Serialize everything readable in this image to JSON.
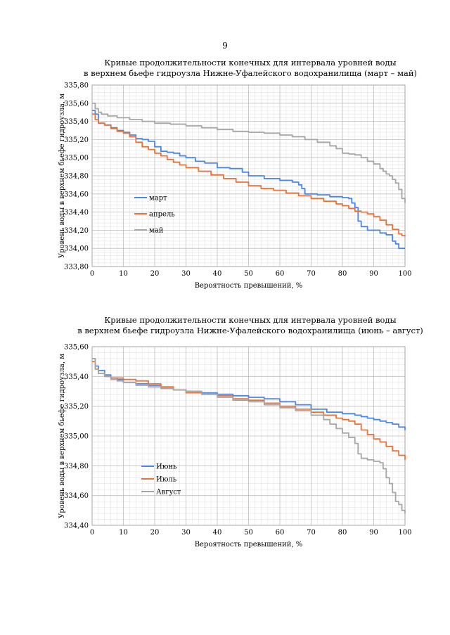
{
  "page": {
    "number": "9"
  },
  "chart_data": [
    {
      "type": "line",
      "title": [
        "Кривые продолжительности конечных для интервала уровней воды",
        "в верхнем бьефе гидроузла Нижне-Уфалейского водохранилища (март – май)"
      ],
      "xlabel": "Вероятность превышений, %",
      "ylabel": "Уровень воды  в верхнем бьефе гидроузла, м",
      "xlim": [
        0,
        100
      ],
      "ylim": [
        333.8,
        335.8
      ],
      "x_ticks": [
        "0",
        "10",
        "20",
        "30",
        "40",
        "50",
        "60",
        "70",
        "80",
        "90",
        "100"
      ],
      "y_ticks": [
        "333,80",
        "334,00",
        "334,20",
        "334,40",
        "334,60",
        "334,80",
        "335,00",
        "335,20",
        "335,40",
        "335,60",
        "335,80"
      ],
      "legend": {
        "placement": "left-middle",
        "entries": [
          "март",
          "апрель",
          "май"
        ]
      },
      "series": [
        {
          "name": "март",
          "color": "#4a86e8",
          "x": [
            0,
            1,
            2,
            4,
            6,
            8,
            10,
            12,
            14,
            16,
            18,
            20,
            22,
            24,
            26,
            28,
            30,
            33,
            36,
            40,
            44,
            48,
            50,
            55,
            60,
            64,
            66,
            67,
            68,
            72,
            76,
            80,
            82,
            83,
            84,
            85,
            86,
            88,
            92,
            94,
            96,
            97,
            98,
            100
          ],
          "y": [
            335.52,
            335.48,
            335.38,
            335.36,
            335.33,
            335.3,
            335.28,
            335.25,
            335.21,
            335.2,
            335.18,
            335.12,
            335.07,
            335.06,
            335.05,
            335.02,
            335.0,
            334.96,
            334.94,
            334.89,
            334.88,
            334.84,
            334.8,
            334.77,
            334.75,
            334.73,
            334.7,
            334.66,
            334.6,
            334.59,
            334.57,
            334.56,
            334.55,
            334.5,
            334.45,
            334.3,
            334.24,
            334.2,
            334.17,
            334.15,
            334.08,
            334.05,
            334.0,
            334.0
          ]
        },
        {
          "name": "апрель",
          "color": "#e8733a",
          "x": [
            0,
            1,
            2,
            4,
            6,
            8,
            10,
            12,
            14,
            16,
            18,
            20,
            22,
            24,
            26,
            28,
            30,
            34,
            38,
            42,
            46,
            50,
            54,
            58,
            62,
            66,
            70,
            74,
            78,
            80,
            82,
            84,
            86,
            88,
            90,
            92,
            94,
            96,
            98,
            99,
            100
          ],
          "y": [
            335.48,
            335.42,
            335.38,
            335.36,
            335.32,
            335.29,
            335.27,
            335.23,
            335.17,
            335.12,
            335.09,
            335.05,
            335.02,
            334.98,
            334.95,
            334.92,
            334.89,
            334.85,
            334.81,
            334.77,
            334.73,
            334.69,
            334.66,
            334.64,
            334.61,
            334.58,
            334.55,
            334.52,
            334.49,
            334.47,
            334.44,
            334.41,
            334.4,
            334.38,
            334.35,
            334.31,
            334.26,
            334.21,
            334.16,
            334.14,
            334.13
          ]
        },
        {
          "name": "май",
          "color": "#a6a6a6",
          "x": [
            0,
            1,
            2,
            3,
            5,
            8,
            12,
            16,
            20,
            25,
            30,
            35,
            40,
            45,
            50,
            55,
            60,
            64,
            68,
            72,
            76,
            78,
            80,
            82,
            84,
            86,
            88,
            90,
            92,
            93,
            94,
            95,
            96,
            97,
            98,
            99,
            100
          ],
          "y": [
            335.6,
            335.54,
            335.5,
            335.48,
            335.46,
            335.44,
            335.42,
            335.4,
            335.38,
            335.37,
            335.35,
            335.33,
            335.31,
            335.29,
            335.28,
            335.27,
            335.25,
            335.23,
            335.2,
            335.17,
            335.13,
            335.1,
            335.05,
            335.04,
            335.03,
            335.0,
            334.96,
            334.93,
            334.88,
            334.85,
            334.82,
            334.8,
            334.76,
            334.72,
            334.65,
            334.55,
            334.5
          ]
        }
      ]
    },
    {
      "type": "line",
      "title": [
        "Кривые продолжительности конечных для интервала уровней воды",
        "в верхнем бьефе гидроузла Нижне-Уфалейского водохранилища (июнь – август)"
      ],
      "xlabel": "Вероятность превышений, %",
      "ylabel": "Уровень воды  в верхнем бьефе гидроузла, м",
      "xlim": [
        0,
        100
      ],
      "ylim": [
        334.4,
        335.6
      ],
      "x_ticks": [
        "0",
        "10",
        "20",
        "30",
        "40",
        "50",
        "60",
        "70",
        "80",
        "90",
        "100"
      ],
      "y_ticks": [
        "334,40",
        "334,60",
        "334,80",
        "335,00",
        "335,20",
        "335,40",
        "335,60"
      ],
      "legend": {
        "placement": "left-lower",
        "entries": [
          "Июнь",
          "Июль",
          "Август"
        ]
      },
      "series": [
        {
          "name": "Июнь",
          "color": "#4a86e8",
          "x": [
            0,
            1,
            2,
            4,
            6,
            8,
            10,
            14,
            18,
            22,
            26,
            30,
            35,
            40,
            45,
            50,
            55,
            60,
            65,
            70,
            75,
            80,
            84,
            86,
            88,
            90,
            92,
            94,
            96,
            98,
            100
          ],
          "y": [
            335.52,
            335.47,
            335.44,
            335.41,
            335.39,
            335.38,
            335.36,
            335.35,
            335.34,
            335.32,
            335.31,
            335.3,
            335.29,
            335.28,
            335.27,
            335.26,
            335.25,
            335.23,
            335.21,
            335.18,
            335.16,
            335.15,
            335.14,
            335.13,
            335.12,
            335.11,
            335.1,
            335.09,
            335.08,
            335.06,
            335.04
          ]
        },
        {
          "name": "Июль",
          "color": "#e8733a",
          "x": [
            0,
            1,
            2,
            4,
            6,
            8,
            10,
            14,
            18,
            22,
            26,
            30,
            35,
            40,
            45,
            50,
            55,
            60,
            65,
            70,
            74,
            78,
            80,
            82,
            84,
            86,
            88,
            90,
            92,
            94,
            96,
            98,
            100
          ],
          "y": [
            335.5,
            335.45,
            335.42,
            335.4,
            335.39,
            335.39,
            335.38,
            335.37,
            335.35,
            335.33,
            335.31,
            335.29,
            335.28,
            335.27,
            335.25,
            335.24,
            335.22,
            335.2,
            335.18,
            335.16,
            335.14,
            335.12,
            335.11,
            335.1,
            335.08,
            335.04,
            335.01,
            334.98,
            334.96,
            334.93,
            334.9,
            334.87,
            334.84
          ]
        },
        {
          "name": "Август",
          "color": "#a6a6a6",
          "x": [
            0,
            1,
            2,
            4,
            6,
            8,
            10,
            14,
            18,
            22,
            26,
            30,
            35,
            40,
            45,
            50,
            55,
            60,
            65,
            70,
            74,
            76,
            78,
            80,
            82,
            84,
            85,
            86,
            88,
            90,
            92,
            93,
            94,
            95,
            96,
            97,
            98,
            99,
            100
          ],
          "y": [
            335.52,
            335.45,
            335.42,
            335.4,
            335.38,
            335.37,
            335.36,
            335.34,
            335.33,
            335.32,
            335.31,
            335.3,
            335.28,
            335.26,
            335.24,
            335.23,
            335.21,
            335.19,
            335.17,
            335.14,
            335.11,
            335.08,
            335.05,
            335.02,
            334.99,
            334.95,
            334.88,
            334.85,
            334.84,
            334.83,
            334.82,
            334.78,
            334.72,
            334.68,
            334.62,
            334.56,
            334.54,
            334.5,
            334.48
          ]
        }
      ]
    }
  ]
}
